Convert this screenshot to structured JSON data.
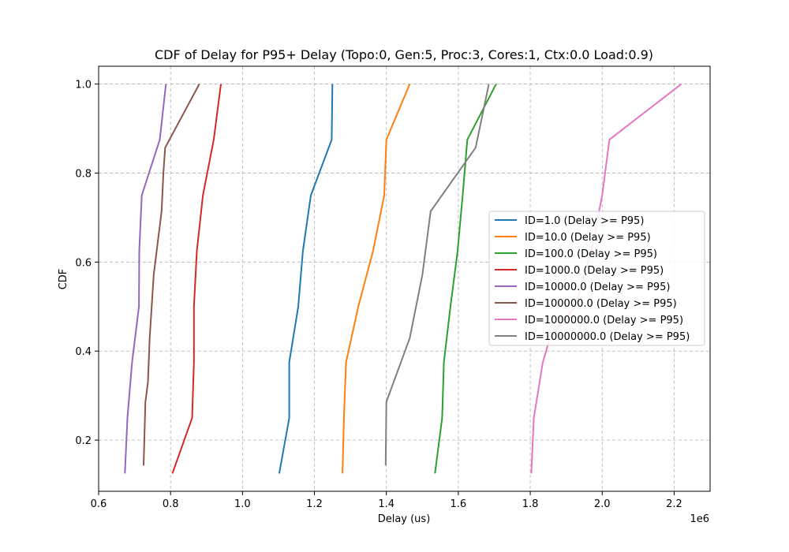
{
  "chart_data": {
    "type": "line",
    "title": "CDF of Delay for P95+ Delay (Topo:0, Gen:5, Proc:3, Cores:1, Ctx:0.0 Load:0.9)",
    "xlabel": "Delay (us)",
    "ylabel": "CDF",
    "x_offset_label": "1e6",
    "xlim": [
      0.6,
      2.3
    ],
    "ylim": [
      0.085,
      1.04
    ],
    "x_ticks": [
      0.6,
      0.8,
      1.0,
      1.2,
      1.4,
      1.6,
      1.8,
      2.0,
      2.2
    ],
    "x_tick_labels": [
      "0.6",
      "0.8",
      "1.0",
      "1.2",
      "1.4",
      "1.6",
      "1.8",
      "2.0",
      "2.2"
    ],
    "y_ticks": [
      0.2,
      0.4,
      0.6,
      0.8,
      1.0
    ],
    "y_tick_labels": [
      "0.2",
      "0.4",
      "0.6",
      "0.8",
      "1.0"
    ],
    "grid": true,
    "legend_position": "center-right",
    "series": [
      {
        "name": "ID=1.0 (Delay >= P95)",
        "color": "#1f77b4",
        "x": [
          1.102,
          1.13,
          1.13,
          1.155,
          1.168,
          1.19,
          1.248,
          1.25
        ],
        "y": [
          0.125,
          0.25,
          0.375,
          0.5,
          0.625,
          0.75,
          0.875,
          1.0
        ]
      },
      {
        "name": "ID=10.0 (Delay >= P95)",
        "color": "#ff7f0e",
        "x": [
          1.278,
          1.282,
          1.288,
          1.322,
          1.363,
          1.394,
          1.4,
          1.465
        ],
        "y": [
          0.125,
          0.25,
          0.375,
          0.5,
          0.625,
          0.75,
          0.875,
          1.0
        ]
      },
      {
        "name": "ID=100.0 (Delay >= P95)",
        "color": "#2ca02c",
        "x": [
          1.535,
          1.555,
          1.56,
          1.578,
          1.598,
          1.612,
          1.625,
          1.705
        ],
        "y": [
          0.125,
          0.25,
          0.375,
          0.5,
          0.625,
          0.75,
          0.875,
          1.0
        ]
      },
      {
        "name": "ID=1000.0 (Delay >= P95)",
        "color": "#d62728",
        "x": [
          0.805,
          0.86,
          0.865,
          0.865,
          0.873,
          0.89,
          0.92,
          0.94
        ],
        "y": [
          0.125,
          0.25,
          0.375,
          0.5,
          0.625,
          0.75,
          0.875,
          1.0
        ]
      },
      {
        "name": "ID=10000.0 (Delay >= P95)",
        "color": "#9467bd",
        "x": [
          0.673,
          0.68,
          0.693,
          0.712,
          0.713,
          0.72,
          0.77,
          0.787
        ],
        "y": [
          0.125,
          0.25,
          0.375,
          0.5,
          0.625,
          0.75,
          0.875,
          1.0
        ]
      },
      {
        "name": "ID=100000.0 (Delay >= P95)",
        "color": "#8c564b",
        "x": [
          0.725,
          0.73,
          0.737,
          0.742,
          0.753,
          0.775,
          0.78,
          0.785,
          0.88
        ],
        "y": [
          0.143,
          0.286,
          0.33,
          0.429,
          0.571,
          0.714,
          0.8,
          0.857,
          1.0
        ]
      },
      {
        "name": "ID=1000000.0 (Delay >= P95)",
        "color": "#e377c2",
        "x": [
          1.803,
          1.81,
          1.835,
          1.855,
          1.925,
          1.97,
          2.0,
          2.02,
          2.22
        ],
        "y": [
          0.125,
          0.25,
          0.375,
          0.43,
          0.5,
          0.625,
          0.75,
          0.875,
          1.0
        ]
      },
      {
        "name": "ID=10000000.0 (Delay >= P95)",
        "color": "#7f7f7f",
        "x": [
          1.398,
          1.4,
          1.465,
          1.5,
          1.523,
          1.648,
          1.685
        ],
        "y": [
          0.143,
          0.286,
          0.429,
          0.571,
          0.714,
          0.857,
          1.0
        ]
      }
    ]
  }
}
